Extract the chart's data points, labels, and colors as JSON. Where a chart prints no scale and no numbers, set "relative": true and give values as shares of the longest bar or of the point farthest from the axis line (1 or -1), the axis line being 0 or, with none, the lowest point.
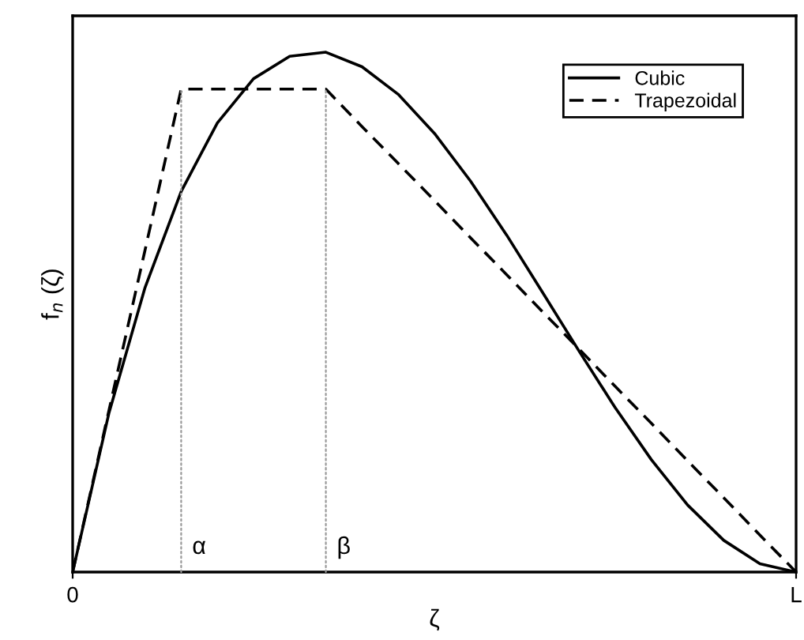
{
  "chart_data": {
    "type": "line",
    "relative": true,
    "xlabel": "ζ",
    "ylabel": "f$_{n}$ (ζ)",
    "categories": [
      "0",
      null,
      null,
      null,
      null,
      null,
      null,
      null,
      null,
      null,
      null,
      null,
      null,
      null,
      null,
      null,
      null,
      null,
      null,
      null,
      "L"
    ],
    "series": [
      {
        "name": "Cubic",
        "color": "#000000",
        "line_style": "solid",
        "values": [
          0,
          0.305,
          0.547,
          0.732,
          0.864,
          0.949,
          0.992,
          1,
          0.972,
          0.919,
          0.844,
          0.752,
          0.648,
          0.537,
          0.425,
          0.316,
          0.216,
          0.129,
          0.061,
          0.016,
          0
        ]
      },
      {
        "name": "Trapezoidal",
        "color": "#000000",
        "line_style": "dashed",
        "values": [
          0,
          0.31,
          0.619,
          0.929,
          0.929,
          0.929,
          0.929,
          0.929,
          0.857,
          0.786,
          0.715,
          0.643,
          0.572,
          0.5,
          0.429,
          0.357,
          0.286,
          0.214,
          0.143,
          0.071,
          0
        ]
      }
    ],
    "annotations": [
      "α",
      "β"
    ],
    "legend": "top right",
    "marker": "none"
  }
}
